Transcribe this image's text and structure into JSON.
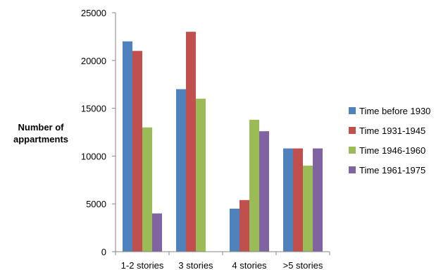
{
  "chart_data": {
    "type": "bar",
    "title": "",
    "xlabel": "",
    "ylabel": [
      "Number of",
      "appartments"
    ],
    "categories": [
      "1-2 stories",
      "3 stories",
      "4 stories",
      ">5 stories"
    ],
    "series": [
      {
        "name": "Time before 1930",
        "color": "#4F81BD",
        "values": [
          22000,
          17000,
          4500,
          10800
        ]
      },
      {
        "name": "Time 1931-1945",
        "color": "#C0504D",
        "values": [
          21000,
          23000,
          5400,
          10800
        ]
      },
      {
        "name": "Time 1946-1960",
        "color": "#9BBB59",
        "values": [
          13000,
          16000,
          13800,
          9000
        ]
      },
      {
        "name": "Time 1961-1975",
        "color": "#8064A2",
        "values": [
          4000,
          0,
          12600,
          10800
        ]
      }
    ],
    "ylim": [
      0,
      25000
    ],
    "yticks": [
      0,
      5000,
      10000,
      15000,
      20000,
      25000
    ],
    "grid": false,
    "legend_position": "right"
  }
}
